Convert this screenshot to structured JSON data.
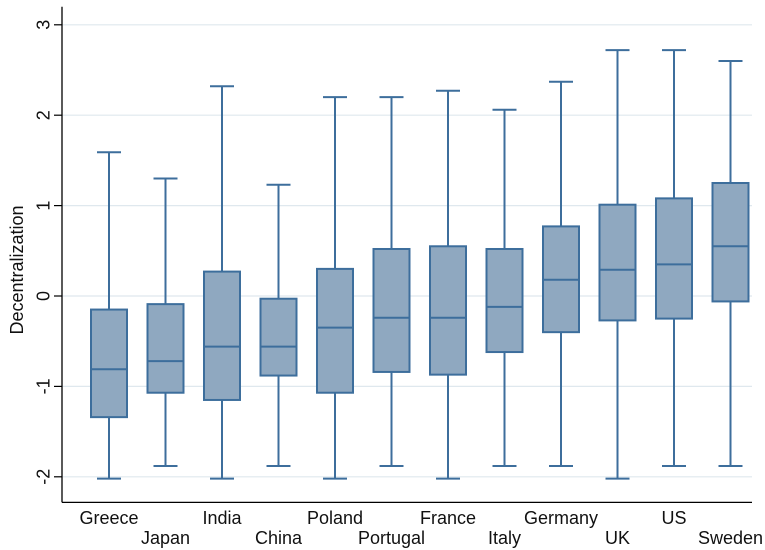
{
  "chart_data": {
    "type": "box",
    "ylabel": "Decentralization",
    "xlabel": "",
    "ylim": [
      -2.25,
      3.2
    ],
    "yticks": [
      -2,
      -1,
      0,
      1,
      2,
      3
    ],
    "ytick_labels": [
      "-2",
      "-1",
      "0",
      "1",
      "2",
      "3"
    ],
    "grid": true,
    "colors": {
      "box_fill": "#8fa8c0",
      "box_stroke": "#3d6e9c",
      "grid": "#dfe8ee",
      "axis": "#000000"
    },
    "categories": [
      "Greece",
      "Japan",
      "India",
      "China",
      "Poland",
      "Portugal",
      "France",
      "Italy",
      "Germany",
      "UK",
      "US",
      "Sweden"
    ],
    "boxes": [
      {
        "category": "Greece",
        "whisker_low": -2.02,
        "q1": -1.34,
        "median": -0.81,
        "q3": -0.15,
        "whisker_high": 1.59
      },
      {
        "category": "Japan",
        "whisker_low": -1.88,
        "q1": -1.07,
        "median": -0.72,
        "q3": -0.09,
        "whisker_high": 1.3
      },
      {
        "category": "India",
        "whisker_low": -2.02,
        "q1": -1.15,
        "median": -0.56,
        "q3": 0.27,
        "whisker_high": 2.32
      },
      {
        "category": "China",
        "whisker_low": -1.88,
        "q1": -0.88,
        "median": -0.56,
        "q3": -0.03,
        "whisker_high": 1.23
      },
      {
        "category": "Poland",
        "whisker_low": -2.02,
        "q1": -1.07,
        "median": -0.35,
        "q3": 0.3,
        "whisker_high": 2.2
      },
      {
        "category": "Portugal",
        "whisker_low": -1.88,
        "q1": -0.84,
        "median": -0.24,
        "q3": 0.52,
        "whisker_high": 2.2
      },
      {
        "category": "France",
        "whisker_low": -2.02,
        "q1": -0.87,
        "median": -0.24,
        "q3": 0.55,
        "whisker_high": 2.27
      },
      {
        "category": "Italy",
        "whisker_low": -1.88,
        "q1": -0.62,
        "median": -0.12,
        "q3": 0.52,
        "whisker_high": 2.06
      },
      {
        "category": "Germany",
        "whisker_low": -1.88,
        "q1": -0.4,
        "median": 0.18,
        "q3": 0.77,
        "whisker_high": 2.37
      },
      {
        "category": "UK",
        "whisker_low": -2.02,
        "q1": -0.27,
        "median": 0.29,
        "q3": 1.01,
        "whisker_high": 2.72
      },
      {
        "category": "US",
        "whisker_low": -1.88,
        "q1": -0.25,
        "median": 0.35,
        "q3": 1.08,
        "whisker_high": 2.72
      },
      {
        "category": "Sweden",
        "whisker_low": -1.88,
        "q1": -0.06,
        "median": 0.55,
        "q3": 1.25,
        "whisker_high": 2.6
      }
    ]
  }
}
